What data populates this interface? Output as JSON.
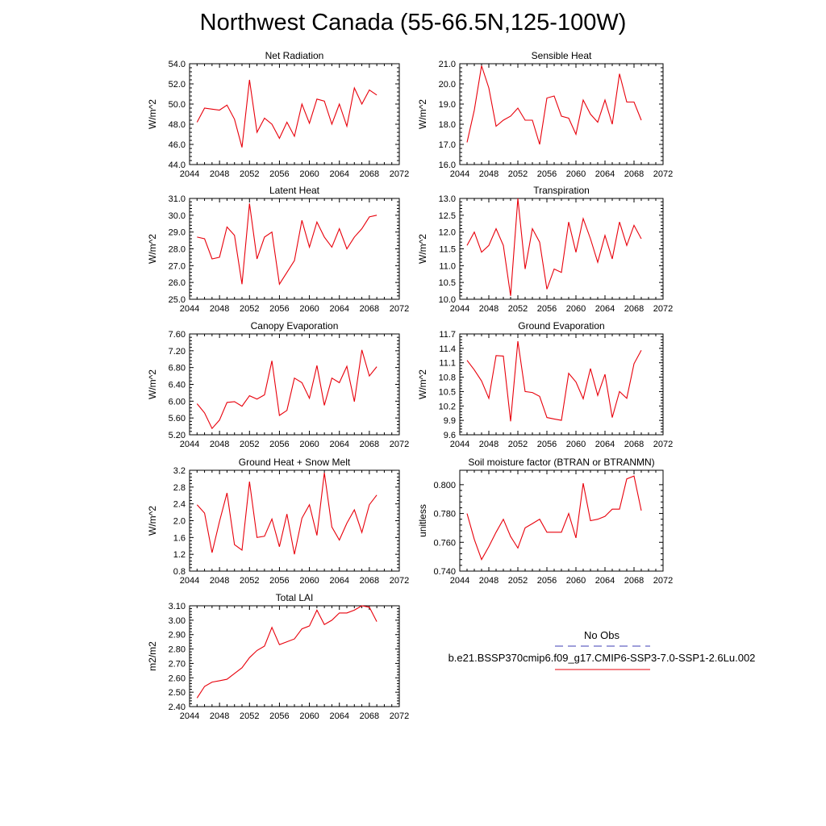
{
  "title": "Northwest Canada (55-66.5N,125-100W)",
  "colors": {
    "model_line": "#e8000b",
    "obs_line": "#3c3cb4",
    "axis": "#000000"
  },
  "legend": {
    "obs_label": "No Obs",
    "model_label": "b.e21.BSSP370cmip6.f09_g17.CMIP6-SSP3-7.0-SSP1-2.6Lu.002"
  },
  "chart_data": [
    {
      "type": "line",
      "title": "Net Radiation",
      "ylabel": "W/m^2",
      "xlim": [
        2044,
        2072
      ],
      "ylim": [
        44,
        54
      ],
      "xticks": [
        2044,
        2048,
        2052,
        2056,
        2060,
        2064,
        2068,
        2072
      ],
      "yticks": [
        44,
        46,
        48,
        50,
        52,
        54
      ],
      "ydecimals": 1,
      "x": [
        2045,
        2046,
        2047,
        2048,
        2049,
        2050,
        2051,
        2052,
        2053,
        2054,
        2055,
        2056,
        2057,
        2058,
        2059,
        2060,
        2061,
        2062,
        2063,
        2064,
        2065,
        2066,
        2067,
        2068,
        2069
      ],
      "values": [
        48.2,
        49.6,
        49.5,
        49.4,
        49.9,
        48.5,
        45.7,
        52.4,
        47.2,
        48.6,
        48.0,
        46.6,
        48.2,
        46.8,
        50.0,
        48.1,
        50.5,
        50.3,
        48.0,
        50.0,
        47.8,
        51.6,
        50.0,
        51.4,
        50.9
      ]
    },
    {
      "type": "line",
      "title": "Sensible Heat",
      "ylabel": "W/m^2",
      "xlim": [
        2044,
        2072
      ],
      "ylim": [
        16,
        21
      ],
      "xticks": [
        2044,
        2048,
        2052,
        2056,
        2060,
        2064,
        2068,
        2072
      ],
      "yticks": [
        16,
        17,
        18,
        19,
        20,
        21
      ],
      "ydecimals": 1,
      "x": [
        2045,
        2046,
        2047,
        2048,
        2049,
        2050,
        2051,
        2052,
        2053,
        2054,
        2055,
        2056,
        2057,
        2058,
        2059,
        2060,
        2061,
        2062,
        2063,
        2064,
        2065,
        2066,
        2067,
        2068,
        2069
      ],
      "values": [
        17.1,
        18.7,
        20.9,
        19.8,
        17.9,
        18.2,
        18.4,
        18.8,
        18.2,
        18.2,
        17.0,
        19.3,
        19.4,
        18.4,
        18.3,
        17.5,
        19.2,
        18.5,
        18.1,
        19.2,
        18.0,
        20.5,
        19.1,
        19.1,
        18.2
      ]
    },
    {
      "type": "line",
      "title": "Latent Heat",
      "ylabel": "W/m^2",
      "xlim": [
        2044,
        2072
      ],
      "ylim": [
        25,
        31
      ],
      "xticks": [
        2044,
        2048,
        2052,
        2056,
        2060,
        2064,
        2068,
        2072
      ],
      "yticks": [
        25,
        26,
        27,
        28,
        29,
        30,
        31
      ],
      "ydecimals": 1,
      "x": [
        2045,
        2046,
        2047,
        2048,
        2049,
        2050,
        2051,
        2052,
        2053,
        2054,
        2055,
        2056,
        2057,
        2058,
        2059,
        2060,
        2061,
        2062,
        2063,
        2064,
        2065,
        2066,
        2067,
        2068,
        2069
      ],
      "values": [
        28.7,
        28.6,
        27.4,
        27.5,
        29.3,
        28.8,
        25.9,
        30.7,
        27.4,
        28.7,
        29.0,
        25.9,
        26.6,
        27.3,
        29.7,
        28.1,
        29.6,
        28.7,
        28.1,
        29.2,
        28.0,
        28.7,
        29.2,
        29.9,
        30.0
      ]
    },
    {
      "type": "line",
      "title": "Transpiration",
      "ylabel": "W/m^2",
      "xlim": [
        2044,
        2072
      ],
      "ylim": [
        10,
        13
      ],
      "xticks": [
        2044,
        2048,
        2052,
        2056,
        2060,
        2064,
        2068,
        2072
      ],
      "yticks": [
        10,
        10.5,
        11,
        11.5,
        12,
        12.5,
        13
      ],
      "ydecimals": 1,
      "x": [
        2045,
        2046,
        2047,
        2048,
        2049,
        2050,
        2051,
        2052,
        2053,
        2054,
        2055,
        2056,
        2057,
        2058,
        2059,
        2060,
        2061,
        2062,
        2063,
        2064,
        2065,
        2066,
        2067,
        2068,
        2069
      ],
      "values": [
        11.6,
        12.0,
        11.4,
        11.6,
        12.1,
        11.6,
        10.1,
        13.0,
        10.9,
        12.1,
        11.7,
        10.3,
        10.9,
        10.8,
        12.3,
        11.4,
        12.4,
        11.8,
        11.1,
        11.9,
        11.2,
        12.3,
        11.6,
        12.2,
        11.8
      ]
    },
    {
      "type": "line",
      "title": "Canopy Evaporation",
      "ylabel": "W/m^2",
      "xlim": [
        2044,
        2072
      ],
      "ylim": [
        5.2,
        7.6
      ],
      "xticks": [
        2044,
        2048,
        2052,
        2056,
        2060,
        2064,
        2068,
        2072
      ],
      "yticks": [
        5.2,
        5.6,
        6.0,
        6.4,
        6.8,
        7.2,
        7.6
      ],
      "ydecimals": 2,
      "x": [
        2045,
        2046,
        2047,
        2048,
        2049,
        2050,
        2051,
        2052,
        2053,
        2054,
        2055,
        2056,
        2057,
        2058,
        2059,
        2060,
        2061,
        2062,
        2063,
        2064,
        2065,
        2066,
        2067,
        2068,
        2069
      ],
      "values": [
        5.94,
        5.72,
        5.35,
        5.55,
        5.97,
        5.99,
        5.88,
        6.13,
        6.05,
        6.15,
        6.96,
        5.66,
        5.78,
        6.55,
        6.44,
        6.07,
        6.85,
        5.9,
        6.55,
        6.44,
        6.83,
        5.99,
        7.22,
        6.6,
        6.82
      ]
    },
    {
      "type": "line",
      "title": "Ground Evaporation",
      "ylabel": "W/m^2",
      "xlim": [
        2044,
        2072
      ],
      "ylim": [
        9.6,
        11.7
      ],
      "xticks": [
        2044,
        2048,
        2052,
        2056,
        2060,
        2064,
        2068,
        2072
      ],
      "yticks": [
        9.6,
        9.9,
        10.2,
        10.5,
        10.8,
        11.1,
        11.4,
        11.7
      ],
      "ydecimals": 1,
      "x": [
        2045,
        2046,
        2047,
        2048,
        2049,
        2050,
        2051,
        2052,
        2053,
        2054,
        2055,
        2056,
        2057,
        2058,
        2059,
        2060,
        2061,
        2062,
        2063,
        2064,
        2065,
        2066,
        2067,
        2068,
        2069
      ],
      "values": [
        11.15,
        10.95,
        10.72,
        10.36,
        11.25,
        11.24,
        9.88,
        11.55,
        10.5,
        10.48,
        10.4,
        9.96,
        9.93,
        9.9,
        10.88,
        10.7,
        10.35,
        10.98,
        10.42,
        10.86,
        9.96,
        10.5,
        10.36,
        11.08,
        11.36
      ]
    },
    {
      "type": "line",
      "title": "Ground Heat + Snow Melt",
      "ylabel": "W/m^2",
      "xlim": [
        2044,
        2072
      ],
      "ylim": [
        0.8,
        3.2
      ],
      "xticks": [
        2044,
        2048,
        2052,
        2056,
        2060,
        2064,
        2068,
        2072
      ],
      "yticks": [
        0.8,
        1.2,
        1.6,
        2.0,
        2.4,
        2.8,
        3.2
      ],
      "ydecimals": 1,
      "x": [
        2045,
        2046,
        2047,
        2048,
        2049,
        2050,
        2051,
        2052,
        2053,
        2054,
        2055,
        2056,
        2057,
        2058,
        2059,
        2060,
        2061,
        2062,
        2063,
        2064,
        2065,
        2066,
        2067,
        2068,
        2069
      ],
      "values": [
        2.38,
        2.18,
        1.24,
        1.98,
        2.66,
        1.43,
        1.3,
        2.93,
        1.6,
        1.63,
        2.04,
        1.38,
        2.16,
        1.2,
        2.06,
        2.38,
        1.65,
        3.14,
        1.85,
        1.54,
        1.94,
        2.26,
        1.72,
        2.38,
        2.61
      ]
    },
    {
      "type": "line",
      "title": "Soil moisture factor (BTRAN or BTRANMN)",
      "ylabel": "unitless",
      "xlim": [
        2044,
        2072
      ],
      "ylim": [
        0.74,
        0.81
      ],
      "xticks": [
        2044,
        2048,
        2052,
        2056,
        2060,
        2064,
        2068,
        2072
      ],
      "yticks": [
        0.74,
        0.76,
        0.78,
        0.8
      ],
      "ydecimals": 3,
      "x": [
        2045,
        2046,
        2047,
        2048,
        2049,
        2050,
        2051,
        2052,
        2053,
        2054,
        2055,
        2056,
        2057,
        2058,
        2059,
        2060,
        2061,
        2062,
        2063,
        2064,
        2065,
        2066,
        2067,
        2068,
        2069
      ],
      "values": [
        0.78,
        0.762,
        0.748,
        0.757,
        0.767,
        0.776,
        0.764,
        0.756,
        0.77,
        0.773,
        0.776,
        0.767,
        0.767,
        0.767,
        0.78,
        0.763,
        0.801,
        0.775,
        0.776,
        0.778,
        0.783,
        0.783,
        0.804,
        0.806,
        0.782
      ]
    },
    {
      "type": "line",
      "title": "Total LAI",
      "ylabel": "m2/m2",
      "xlim": [
        2044,
        2072
      ],
      "ylim": [
        2.4,
        3.1
      ],
      "xticks": [
        2044,
        2048,
        2052,
        2056,
        2060,
        2064,
        2068,
        2072
      ],
      "yticks": [
        2.4,
        2.5,
        2.6,
        2.7,
        2.8,
        2.9,
        3.0,
        3.1
      ],
      "ydecimals": 2,
      "x": [
        2045,
        2046,
        2047,
        2048,
        2049,
        2050,
        2051,
        2052,
        2053,
        2054,
        2055,
        2056,
        2057,
        2058,
        2059,
        2060,
        2061,
        2062,
        2063,
        2064,
        2065,
        2066,
        2067,
        2068,
        2069
      ],
      "values": [
        2.46,
        2.54,
        2.57,
        2.58,
        2.59,
        2.63,
        2.67,
        2.74,
        2.79,
        2.82,
        2.95,
        2.83,
        2.85,
        2.87,
        2.94,
        2.96,
        3.07,
        2.97,
        3.0,
        3.05,
        3.05,
        3.07,
        3.1,
        3.09,
        2.99
      ]
    }
  ]
}
